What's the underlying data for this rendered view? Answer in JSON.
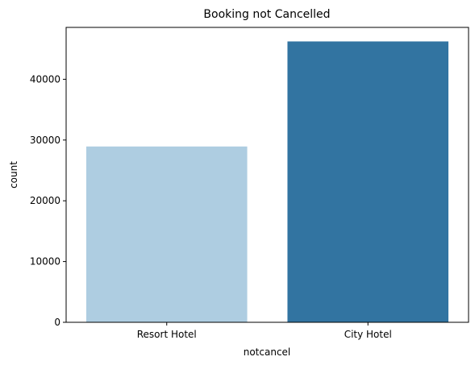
{
  "chart_data": {
    "type": "bar",
    "title": "Booking not Cancelled",
    "xlabel": "notcancel",
    "ylabel": "count",
    "categories": [
      "Resort Hotel",
      "City Hotel"
    ],
    "values": [
      28938,
      46228
    ],
    "colors": [
      "#aecde1",
      "#3274a1"
    ],
    "ylim": [
      0,
      48540
    ],
    "yticks": [
      0,
      10000,
      20000,
      30000,
      40000
    ],
    "ytick_labels": [
      "0",
      "10000",
      "20000",
      "30000",
      "40000"
    ],
    "grid": false,
    "legend": "none"
  }
}
